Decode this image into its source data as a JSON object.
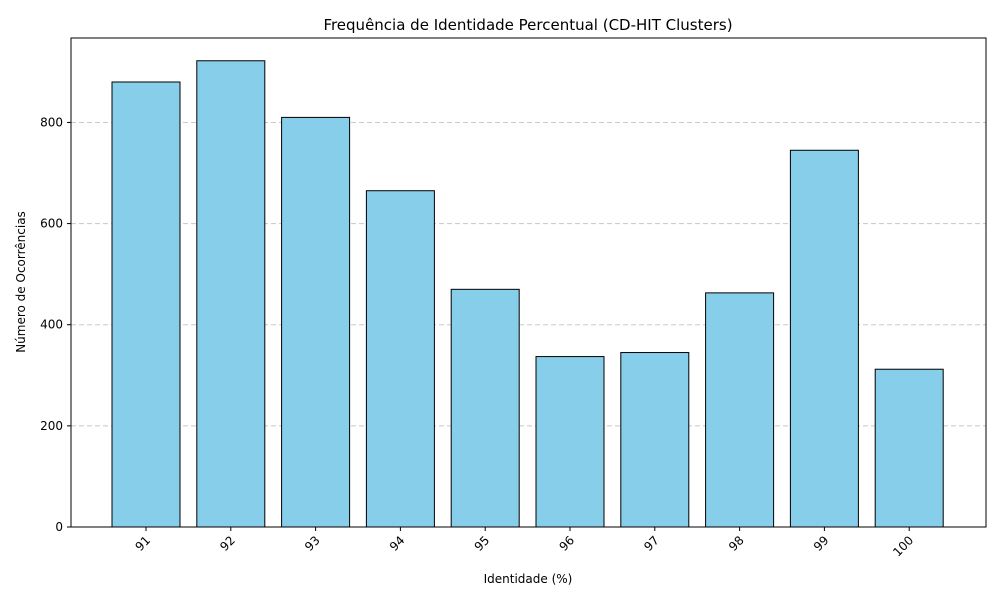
{
  "chart_data": {
    "type": "bar",
    "title": "Frequência de Identidade Percentual (CD-HIT Clusters)",
    "xlabel": "Identidade (%)",
    "ylabel": "Número de Ocorrências",
    "categories": [
      "91",
      "92",
      "93",
      "94",
      "95",
      "96",
      "97",
      "98",
      "99",
      "100"
    ],
    "values": [
      880,
      922,
      810,
      665,
      470,
      337,
      345,
      463,
      745,
      312
    ],
    "ylim": [
      0,
      967
    ],
    "yticks": [
      0,
      200,
      400,
      600,
      800
    ],
    "grid": "y-dashed",
    "bar_color": "#87ceeb",
    "edge_color": "#000000",
    "xtick_rotation": 45
  }
}
